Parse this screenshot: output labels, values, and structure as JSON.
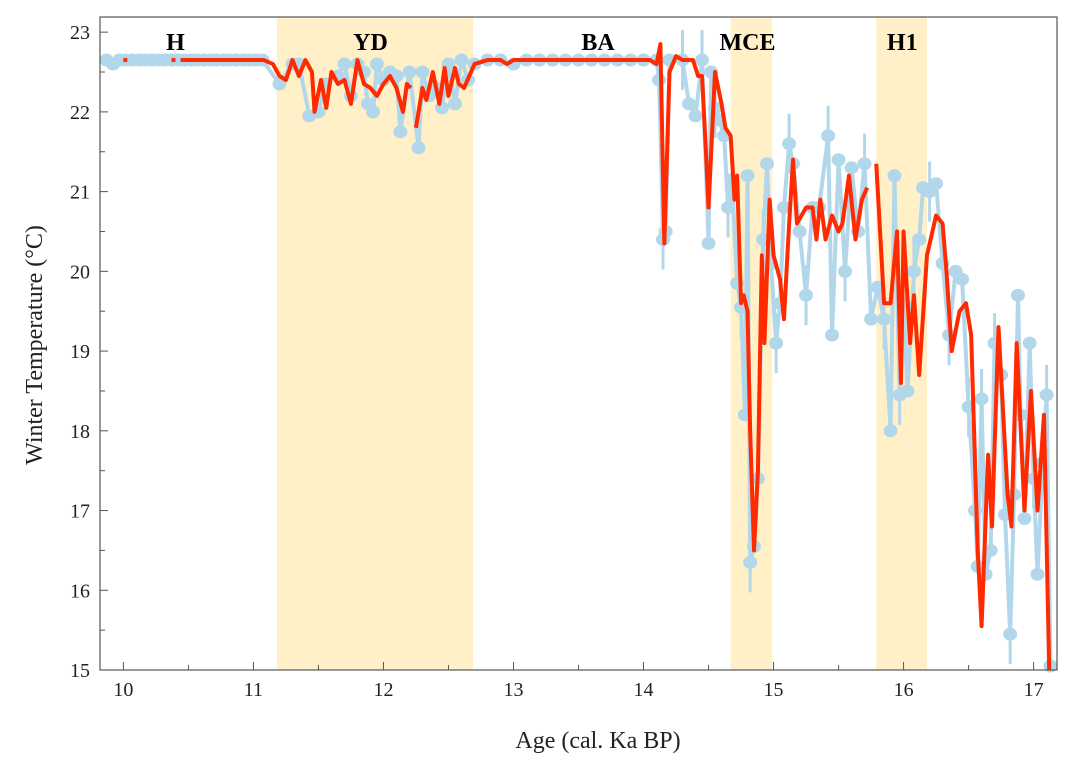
{
  "chart_data": {
    "type": "line",
    "title": "",
    "xlabel": "Age (cal. Ka BP)",
    "ylabel": "Winter Temperature  (°C)",
    "xlim": [
      9.82,
      17.18
    ],
    "ylim": [
      15,
      23.19
    ],
    "xticks": [
      10,
      11,
      12,
      13,
      14,
      15,
      16,
      17
    ],
    "yticks": [
      15,
      16,
      17,
      18,
      19,
      20,
      21,
      22,
      23
    ],
    "grid": false,
    "colors": {
      "points": "#b3d7ea",
      "smooth": "#ff2a00",
      "band": "#fff0c8",
      "axis": "#555555"
    },
    "bands": [
      {
        "label": "YD",
        "from": 11.18,
        "to": 12.69
      },
      {
        "label": "MCE",
        "from": 14.67,
        "to": 14.99
      },
      {
        "label": "H1",
        "from": 15.79,
        "to": 16.18
      }
    ],
    "annotations": [
      {
        "text": "H",
        "x": 10.4
      },
      {
        "text": "YD",
        "x": 11.9
      },
      {
        "text": "BA",
        "x": 13.65
      },
      {
        "text": "MCE",
        "x": 14.8
      },
      {
        "text": "H1",
        "x": 15.99
      }
    ],
    "points": [
      [
        9.87,
        22.65
      ],
      [
        9.92,
        22.6
      ],
      [
        9.97,
        22.65
      ],
      [
        10.02,
        22.65
      ],
      [
        10.07,
        22.65
      ],
      [
        10.12,
        22.65
      ],
      [
        10.17,
        22.65
      ],
      [
        10.22,
        22.65
      ],
      [
        10.27,
        22.65
      ],
      [
        10.32,
        22.65
      ],
      [
        10.37,
        22.65
      ],
      [
        10.42,
        22.65
      ],
      [
        10.47,
        22.65
      ],
      [
        10.52,
        22.65
      ],
      [
        10.57,
        22.65
      ],
      [
        10.62,
        22.65
      ],
      [
        10.67,
        22.65
      ],
      [
        10.72,
        22.65
      ],
      [
        10.77,
        22.65
      ],
      [
        10.82,
        22.65
      ],
      [
        10.87,
        22.65
      ],
      [
        10.92,
        22.65
      ],
      [
        10.97,
        22.65
      ],
      [
        11.02,
        22.65
      ],
      [
        11.07,
        22.65
      ],
      [
        11.2,
        22.35
      ],
      [
        11.3,
        22.6
      ],
      [
        11.35,
        22.6
      ],
      [
        11.43,
        21.95
      ],
      [
        11.5,
        22.0
      ],
      [
        11.55,
        22.35
      ],
      [
        11.65,
        22.45
      ],
      [
        11.7,
        22.6
      ],
      [
        11.75,
        22.2
      ],
      [
        11.8,
        22.6
      ],
      [
        11.85,
        22.5
      ],
      [
        11.88,
        22.1
      ],
      [
        11.92,
        22.0
      ],
      [
        11.95,
        22.6
      ],
      [
        12.0,
        22.4
      ],
      [
        12.05,
        22.5
      ],
      [
        12.1,
        22.45
      ],
      [
        12.13,
        21.75
      ],
      [
        12.2,
        22.5
      ],
      [
        12.27,
        21.55
      ],
      [
        12.3,
        22.5
      ],
      [
        12.35,
        22.2
      ],
      [
        12.4,
        22.3
      ],
      [
        12.45,
        22.05
      ],
      [
        12.5,
        22.6
      ],
      [
        12.55,
        22.1
      ],
      [
        12.6,
        22.65
      ],
      [
        12.65,
        22.4
      ],
      [
        12.7,
        22.6
      ],
      [
        12.8,
        22.65
      ],
      [
        12.9,
        22.65
      ],
      [
        13.0,
        22.6
      ],
      [
        13.1,
        22.65
      ],
      [
        13.2,
        22.65
      ],
      [
        13.3,
        22.65
      ],
      [
        13.4,
        22.65
      ],
      [
        13.5,
        22.65
      ],
      [
        13.6,
        22.65
      ],
      [
        13.7,
        22.65
      ],
      [
        13.8,
        22.65
      ],
      [
        13.9,
        22.65
      ],
      [
        14.0,
        22.65
      ],
      [
        14.1,
        22.65
      ],
      [
        14.12,
        22.4
      ],
      [
        14.15,
        20.4
      ],
      [
        14.17,
        20.5
      ],
      [
        14.2,
        22.65
      ],
      [
        14.3,
        22.65
      ],
      [
        14.35,
        22.1
      ],
      [
        14.4,
        21.95
      ],
      [
        14.45,
        22.65
      ],
      [
        14.5,
        20.35
      ],
      [
        14.52,
        22.5
      ],
      [
        14.55,
        22.05
      ],
      [
        14.58,
        21.9
      ],
      [
        14.62,
        21.7
      ],
      [
        14.65,
        20.8
      ],
      [
        14.68,
        21.15
      ],
      [
        14.72,
        19.85
      ],
      [
        14.75,
        19.55
      ],
      [
        14.78,
        18.2
      ],
      [
        14.8,
        21.2
      ],
      [
        14.82,
        16.35
      ],
      [
        14.85,
        16.55
      ],
      [
        14.88,
        17.4
      ],
      [
        14.92,
        20.4
      ],
      [
        14.95,
        21.35
      ],
      [
        14.98,
        20.1
      ],
      [
        15.02,
        19.1
      ],
      [
        15.05,
        19.6
      ],
      [
        15.08,
        20.8
      ],
      [
        15.12,
        21.6
      ],
      [
        15.15,
        21.35
      ],
      [
        15.2,
        20.5
      ],
      [
        15.25,
        19.7
      ],
      [
        15.3,
        20.8
      ],
      [
        15.35,
        20.8
      ],
      [
        15.42,
        21.7
      ],
      [
        15.45,
        19.2
      ],
      [
        15.5,
        21.4
      ],
      [
        15.55,
        20.0
      ],
      [
        15.6,
        21.3
      ],
      [
        15.65,
        20.5
      ],
      [
        15.7,
        21.35
      ],
      [
        15.75,
        19.4
      ],
      [
        15.8,
        19.8
      ],
      [
        15.85,
        19.4
      ],
      [
        15.9,
        18.0
      ],
      [
        15.93,
        21.2
      ],
      [
        15.97,
        18.45
      ],
      [
        16.0,
        19.6
      ],
      [
        16.03,
        18.5
      ],
      [
        16.08,
        20.0
      ],
      [
        16.12,
        20.4
      ],
      [
        16.15,
        21.05
      ],
      [
        16.2,
        21.0
      ],
      [
        16.25,
        21.1
      ],
      [
        16.3,
        20.1
      ],
      [
        16.35,
        19.2
      ],
      [
        16.4,
        20.0
      ],
      [
        16.45,
        19.9
      ],
      [
        16.5,
        18.3
      ],
      [
        16.55,
        17.0
      ],
      [
        16.57,
        16.3
      ],
      [
        16.6,
        18.4
      ],
      [
        16.63,
        16.2
      ],
      [
        16.67,
        16.5
      ],
      [
        16.7,
        19.1
      ],
      [
        16.75,
        18.7
      ],
      [
        16.78,
        16.95
      ],
      [
        16.82,
        15.45
      ],
      [
        16.85,
        17.2
      ],
      [
        16.88,
        19.7
      ],
      [
        16.9,
        18.2
      ],
      [
        16.93,
        16.9
      ],
      [
        16.97,
        19.1
      ],
      [
        17.0,
        17.4
      ],
      [
        17.03,
        16.2
      ],
      [
        17.07,
        17.6
      ],
      [
        17.1,
        18.45
      ],
      [
        17.13,
        15.05
      ]
    ],
    "smooth_segments": [
      [
        [
          10.0,
          22.65
        ],
        [
          10.03,
          22.65
        ]
      ],
      [
        [
          10.37,
          22.65
        ],
        [
          10.4,
          22.65
        ]
      ],
      [
        [
          10.44,
          22.65
        ],
        [
          11.08,
          22.65
        ],
        [
          11.15,
          22.6
        ],
        [
          11.2,
          22.45
        ],
        [
          11.25,
          22.4
        ],
        [
          11.3,
          22.65
        ],
        [
          11.35,
          22.45
        ],
        [
          11.4,
          22.65
        ],
        [
          11.45,
          22.5
        ],
        [
          11.47,
          22.0
        ],
        [
          11.52,
          22.4
        ],
        [
          11.56,
          22.05
        ],
        [
          11.6,
          22.5
        ],
        [
          11.65,
          22.35
        ],
        [
          11.7,
          22.4
        ],
        [
          11.75,
          22.1
        ],
        [
          11.8,
          22.65
        ],
        [
          11.85,
          22.35
        ],
        [
          11.9,
          22.3
        ],
        [
          11.95,
          22.2
        ],
        [
          12.0,
          22.35
        ],
        [
          12.05,
          22.45
        ],
        [
          12.1,
          22.3
        ],
        [
          12.15,
          22.0
        ],
        [
          12.18,
          22.35
        ],
        [
          12.21,
          22.3
        ]
      ],
      [
        [
          12.25,
          21.8
        ],
        [
          12.3,
          22.3
        ],
        [
          12.33,
          22.15
        ],
        [
          12.38,
          22.5
        ],
        [
          12.43,
          22.1
        ],
        [
          12.47,
          22.55
        ],
        [
          12.5,
          22.2
        ],
        [
          12.55,
          22.55
        ],
        [
          12.58,
          22.35
        ],
        [
          12.62,
          22.3
        ],
        [
          12.7,
          22.6
        ],
        [
          12.8,
          22.65
        ],
        [
          12.9,
          22.65
        ],
        [
          12.95,
          22.6
        ],
        [
          13.0,
          22.65
        ],
        [
          14.05,
          22.65
        ],
        [
          14.1,
          22.6
        ],
        [
          14.13,
          22.85
        ],
        [
          14.16,
          20.35
        ],
        [
          14.2,
          22.5
        ],
        [
          14.25,
          22.7
        ],
        [
          14.3,
          22.65
        ],
        [
          14.38,
          22.65
        ],
        [
          14.42,
          22.45
        ],
        [
          14.45,
          22.45
        ],
        [
          14.48,
          21.5
        ],
        [
          14.5,
          20.8
        ],
        [
          14.55,
          22.5
        ],
        [
          14.6,
          22.1
        ],
        [
          14.63,
          21.8
        ],
        [
          14.67,
          21.7
        ],
        [
          14.7,
          20.9
        ],
        [
          14.72,
          21.2
        ],
        [
          14.75,
          19.6
        ],
        [
          14.77,
          19.7
        ],
        [
          14.8,
          19.5
        ],
        [
          14.82,
          18.0
        ],
        [
          14.85,
          16.5
        ],
        [
          14.88,
          17.5
        ],
        [
          14.91,
          20.2
        ],
        [
          14.93,
          19.1
        ],
        [
          14.97,
          20.9
        ],
        [
          15.0,
          20.2
        ],
        [
          15.05,
          19.9
        ],
        [
          15.08,
          19.4
        ],
        [
          15.12,
          20.6
        ],
        [
          15.15,
          21.4
        ],
        [
          15.18,
          20.6
        ],
        [
          15.25,
          20.8
        ],
        [
          15.3,
          20.8
        ],
        [
          15.33,
          20.4
        ],
        [
          15.36,
          20.9
        ],
        [
          15.4,
          20.4
        ],
        [
          15.45,
          20.7
        ],
        [
          15.5,
          20.5
        ],
        [
          15.53,
          20.6
        ],
        [
          15.58,
          21.2
        ],
        [
          15.63,
          20.4
        ],
        [
          15.68,
          20.9
        ],
        [
          15.72,
          21.05
        ]
      ],
      [
        [
          15.79,
          21.35
        ],
        [
          15.85,
          19.6
        ],
        [
          15.9,
          19.6
        ],
        [
          15.95,
          20.5
        ],
        [
          15.98,
          18.6
        ],
        [
          16.0,
          20.5
        ],
        [
          16.05,
          19.1
        ],
        [
          16.08,
          19.7
        ],
        [
          16.12,
          18.7
        ],
        [
          16.18,
          20.2
        ],
        [
          16.25,
          20.7
        ],
        [
          16.3,
          20.6
        ],
        [
          16.33,
          20.0
        ],
        [
          16.37,
          19.0
        ],
        [
          16.43,
          19.5
        ],
        [
          16.48,
          19.6
        ],
        [
          16.52,
          19.2
        ],
        [
          16.57,
          16.5
        ],
        [
          16.6,
          15.55
        ],
        [
          16.65,
          17.7
        ],
        [
          16.68,
          16.8
        ],
        [
          16.73,
          19.3
        ],
        [
          16.8,
          17.2
        ],
        [
          16.83,
          16.8
        ],
        [
          16.87,
          19.1
        ],
        [
          16.93,
          17.0
        ],
        [
          16.98,
          18.5
        ],
        [
          17.03,
          17.0
        ],
        [
          17.08,
          18.2
        ],
        [
          17.12,
          15.0
        ]
      ]
    ]
  }
}
